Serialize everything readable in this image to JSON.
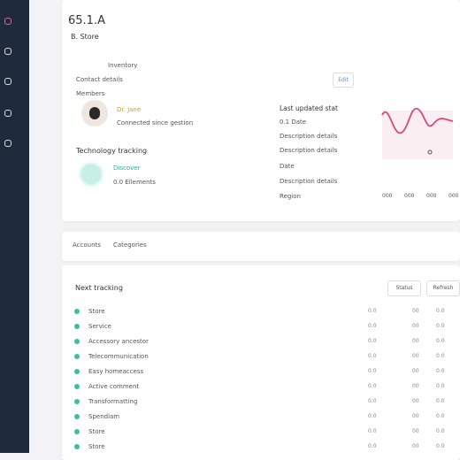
{
  "header": {
    "title": "65.1.A",
    "subtitle": "B. Store"
  },
  "overview": {
    "inventory": "Inventory",
    "contact": "Contact details",
    "edit": "Edit",
    "members": "Members",
    "member_name": "Dr. Jane",
    "member_note": "Connected since gestion",
    "tracking_title": "Technology tracking",
    "tracking_name": "Discover",
    "tracking_note": "0.0 Ellements"
  },
  "details": {
    "title": "Last updated stat",
    "lines": [
      "0.1 Date",
      "Description details",
      "Description details",
      "Date",
      "Description details",
      "Region"
    ]
  },
  "chart": {
    "x_labels": [
      "000",
      "000",
      "000",
      "000"
    ]
  },
  "tabs": [
    "Accounts",
    "Categories"
  ],
  "list": {
    "title": "Next tracking",
    "buttons": [
      "Status",
      "Refresh"
    ],
    "rows": [
      {
        "label": "Store",
        "cells": [
          "0.0",
          "00",
          "0.0"
        ]
      },
      {
        "label": "Service",
        "cells": [
          "0.0",
          "00",
          "0.0"
        ]
      },
      {
        "label": "Accessory ancestor",
        "cells": [
          "0.0",
          "00",
          "0.0"
        ]
      },
      {
        "label": "Telecommunication",
        "cells": [
          "0.0",
          "00",
          "0.0"
        ]
      },
      {
        "label": "Easy homeaccess",
        "cells": [
          "0.0",
          "00",
          "0.0"
        ]
      },
      {
        "label": "Active comment",
        "cells": [
          "0.0",
          "00",
          "0.0"
        ]
      },
      {
        "label": "Transformatting",
        "cells": [
          "0.0",
          "00",
          "0.0"
        ]
      },
      {
        "label": "Spendiam",
        "cells": [
          "0.0",
          "00",
          "0.0"
        ]
      },
      {
        "label": "Store",
        "cells": [
          "0.0",
          "00",
          "0.0"
        ]
      },
      {
        "label": "Store",
        "cells": [
          "0.0",
          "00",
          "0.0"
        ]
      }
    ]
  }
}
